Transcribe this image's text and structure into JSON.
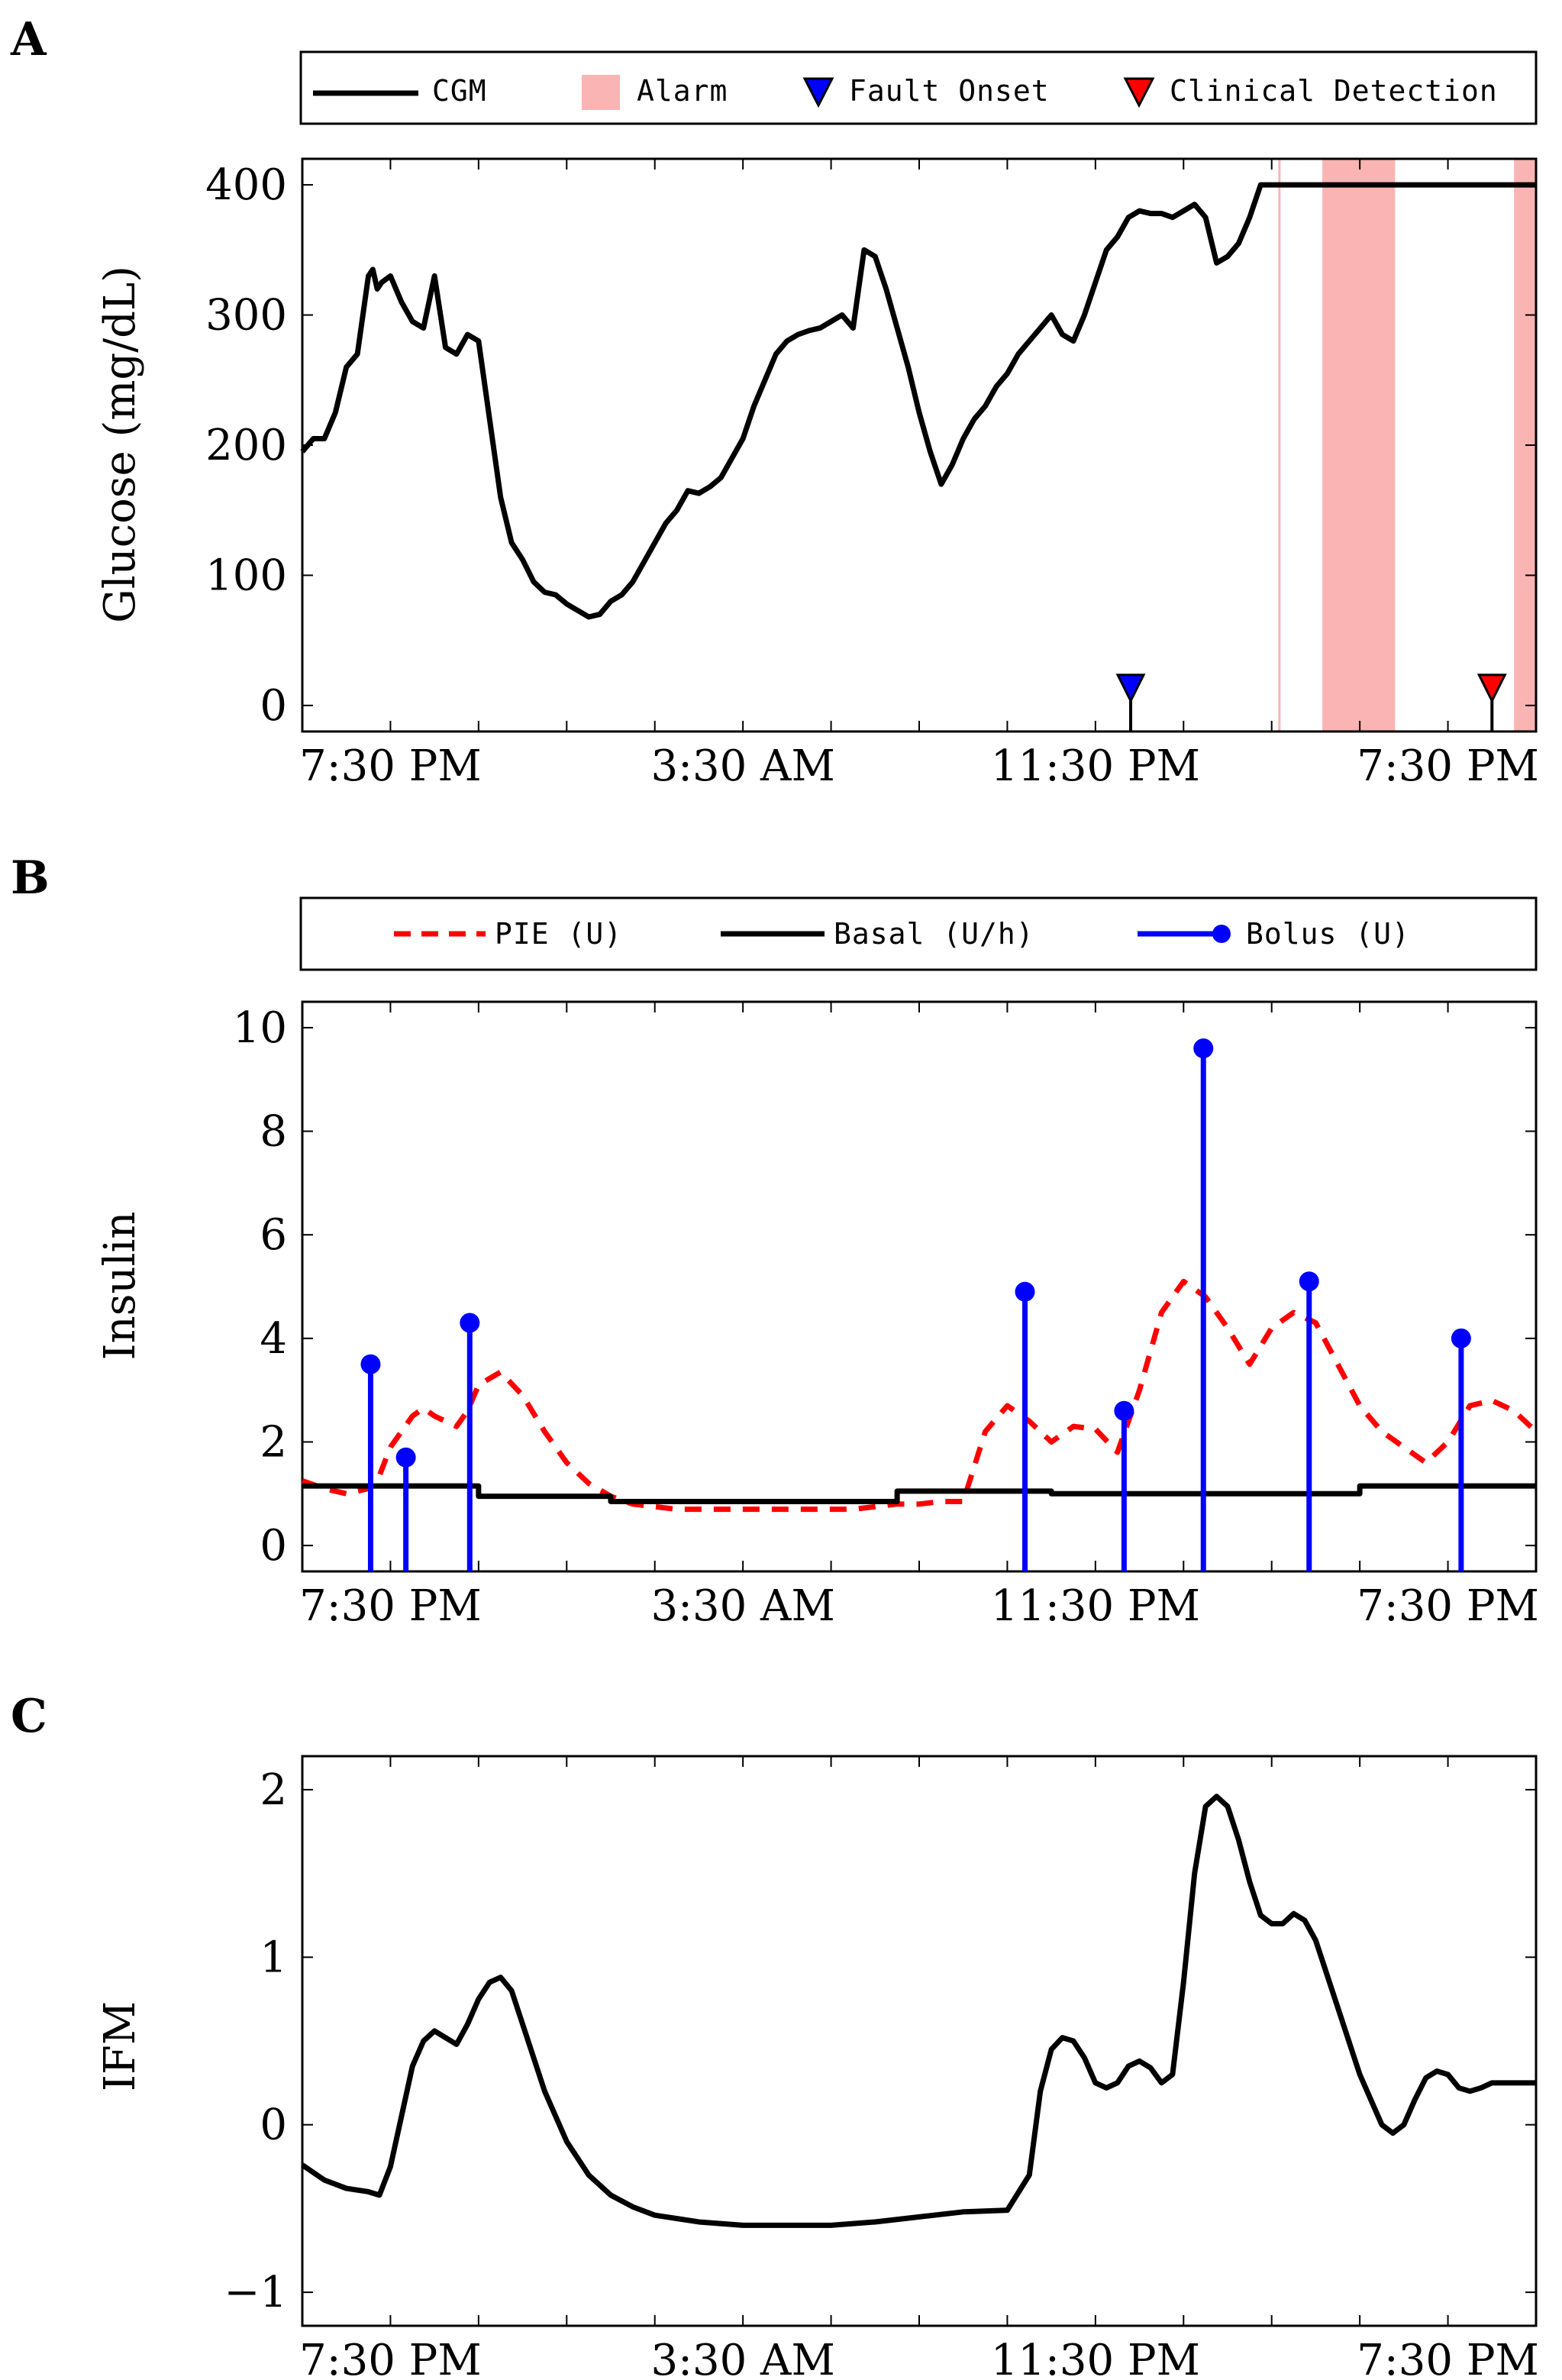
{
  "panels": {
    "A": {
      "letter": "A"
    },
    "B": {
      "letter": "B"
    },
    "C": {
      "letter": "C"
    }
  },
  "x_ticks": [
    "7:30 PM",
    "3:30 AM",
    "11:30 PM",
    "7:30 PM"
  ],
  "chart_data": [
    {
      "id": "A",
      "type": "line",
      "title": "",
      "xlabel": "",
      "ylabel": "Glucose (mg/dL)",
      "x_unit": "hours",
      "xlim": [
        0,
        56
      ],
      "ylim": [
        -20,
        420
      ],
      "y_ticks": [
        0,
        100,
        200,
        300,
        400
      ],
      "legend": {
        "placement": "top",
        "entries": [
          "CGM",
          "Alarm",
          "Fault Onset",
          "Clinical Detection"
        ]
      },
      "colors": {
        "cgm": "#000000",
        "alarm": "#fbb4b4",
        "fault": "#0000ff",
        "detection": "#ff0000"
      },
      "series": [
        {
          "name": "CGM",
          "x": [
            0,
            0.5,
            1,
            1.5,
            2,
            2.5,
            3,
            3.2,
            3.4,
            3.6,
            4,
            4.5,
            5,
            5.5,
            6,
            6.5,
            7,
            7.5,
            8,
            8.5,
            9,
            9.5,
            10,
            10.5,
            11,
            11.5,
            12,
            12.5,
            13,
            13.5,
            14,
            14.5,
            15,
            15.5,
            16,
            16.5,
            17,
            17.5,
            18,
            18.5,
            19,
            19.5,
            20,
            20.5,
            21,
            21.5,
            22,
            22.5,
            23,
            23.5,
            24,
            24.5,
            25,
            25.5,
            26,
            26.5,
            27,
            27.5,
            28,
            28.5,
            29,
            29.5,
            30,
            30.5,
            31,
            31.5,
            32,
            32.5,
            33,
            33.5,
            34,
            34.5,
            35,
            35.5,
            36,
            36.5,
            37,
            37.5,
            38,
            38.5,
            39,
            39.5,
            40,
            40.5,
            41,
            41.5,
            42,
            42.5,
            43,
            43.5,
            44,
            44.5,
            45,
            45.5,
            46,
            46.5,
            47,
            47.5,
            48,
            48.5,
            49,
            49.5,
            50,
            50.5,
            51,
            51.5,
            52,
            52.5,
            53,
            53.5,
            54,
            54.5,
            55,
            55.5,
            56
          ],
          "y": [
            195,
            205,
            205,
            225,
            260,
            270,
            330,
            335,
            320,
            325,
            330,
            310,
            295,
            290,
            330,
            275,
            270,
            285,
            280,
            220,
            160,
            125,
            112,
            95,
            87,
            85,
            78,
            73,
            68,
            70,
            80,
            85,
            95,
            110,
            125,
            140,
            150,
            165,
            163,
            168,
            175,
            190,
            205,
            230,
            250,
            270,
            280,
            285,
            288,
            290,
            295,
            300,
            290,
            350,
            345,
            320,
            290,
            260,
            225,
            195,
            170,
            185,
            205,
            220,
            230,
            245,
            255,
            270,
            280,
            290,
            300,
            285,
            280,
            300,
            325,
            350,
            360,
            375,
            380,
            378,
            378,
            375,
            380,
            385,
            375,
            340,
            345,
            355,
            375,
            400,
            400,
            400,
            400,
            400,
            400,
            400,
            400,
            400,
            400,
            400,
            400,
            400,
            400,
            400,
            400,
            400,
            400,
            400,
            400,
            400,
            400,
            400,
            400,
            400,
            400
          ]
        }
      ],
      "alarm_intervals": [
        [
          44.3,
          44.4
        ],
        [
          46.3,
          49.6
        ],
        [
          55.0,
          56.0
        ]
      ],
      "fault_onset": {
        "x": 37.6,
        "label": "Fault Onset"
      },
      "clinical_detection": {
        "x": 54.0,
        "label": "Clinical Detection"
      }
    },
    {
      "id": "B",
      "type": "line",
      "title": "",
      "xlabel": "",
      "ylabel": "Insulin",
      "x_unit": "hours",
      "xlim": [
        0,
        56
      ],
      "ylim": [
        -0.5,
        10.5
      ],
      "y_ticks": [
        0,
        2,
        4,
        6,
        8,
        10
      ],
      "legend": {
        "placement": "top",
        "entries": [
          "PIE (U)",
          "Basal (U/h)",
          "Bolus (U)"
        ]
      },
      "colors": {
        "pie": "#ff0000",
        "basal": "#000000",
        "bolus": "#0000ff"
      },
      "series": [
        {
          "name": "PIE (U)",
          "style": "dashed",
          "x": [
            0,
            1,
            2,
            3,
            3.5,
            4,
            5,
            5.5,
            6,
            7,
            7.5,
            8,
            9,
            10,
            11,
            12,
            13,
            14,
            15,
            16,
            17,
            18,
            19,
            20,
            21,
            22,
            23,
            24,
            25,
            26,
            27,
            28,
            29,
            30,
            31,
            32,
            33,
            34,
            35,
            36,
            37,
            38,
            39,
            40,
            41,
            42,
            43,
            44,
            45,
            46,
            47,
            48,
            49,
            50,
            51,
            52,
            53,
            54,
            55,
            56
          ],
          "y": [
            1.25,
            1.1,
            1.0,
            1.1,
            1.35,
            1.9,
            2.5,
            2.65,
            2.5,
            2.3,
            2.6,
            3.1,
            3.35,
            2.9,
            2.2,
            1.6,
            1.2,
            0.95,
            0.8,
            0.75,
            0.7,
            0.7,
            0.7,
            0.7,
            0.7,
            0.7,
            0.7,
            0.7,
            0.7,
            0.75,
            0.8,
            0.8,
            0.85,
            0.85,
            2.2,
            2.7,
            2.4,
            2.0,
            2.3,
            2.25,
            1.8,
            3.0,
            4.5,
            5.1,
            4.8,
            4.2,
            3.5,
            4.2,
            4.5,
            4.3,
            3.5,
            2.7,
            2.2,
            1.9,
            1.6,
            2.0,
            2.7,
            2.8,
            2.6,
            2.2
          ]
        },
        {
          "name": "Basal (U/h)",
          "style": "step",
          "x": [
            0,
            8,
            14,
            20,
            27,
            34,
            41,
            48,
            56
          ],
          "y": [
            1.15,
            0.95,
            0.85,
            0.85,
            1.05,
            1.0,
            1.0,
            1.15,
            1.15
          ]
        }
      ],
      "bolus": {
        "name": "Bolus (U)",
        "x": [
          3.1,
          4.7,
          7.6,
          32.8,
          37.3,
          40.9,
          45.7,
          52.6
        ],
        "y": [
          3.5,
          1.7,
          4.3,
          4.9,
          2.6,
          9.6,
          5.1,
          4.0
        ]
      }
    },
    {
      "id": "C",
      "type": "line",
      "title": "",
      "xlabel": "",
      "ylabel": "IFM",
      "x_unit": "hours",
      "xlim": [
        0,
        56
      ],
      "ylim": [
        -1.2,
        2.2
      ],
      "y_ticks": [
        -1,
        0,
        1,
        2
      ],
      "colors": {
        "ifm": "#000000"
      },
      "series": [
        {
          "name": "IFM",
          "x": [
            0,
            1,
            2,
            3,
            3.5,
            4,
            4.5,
            5,
            5.5,
            6,
            6.5,
            7,
            7.5,
            8,
            8.5,
            9,
            9.5,
            10,
            10.5,
            11,
            12,
            13,
            14,
            15,
            16,
            18,
            20,
            22,
            24,
            26,
            28,
            30,
            32,
            33,
            33.5,
            34,
            34.5,
            35,
            35.5,
            36,
            36.5,
            37,
            37.5,
            38,
            38.5,
            39,
            39.5,
            40,
            40.5,
            41,
            41.5,
            42,
            42.5,
            43,
            43.5,
            44,
            44.5,
            45,
            45.5,
            46,
            46.5,
            47,
            47.5,
            48,
            48.5,
            49,
            49.5,
            50,
            50.5,
            51,
            51.5,
            52,
            52.5,
            53,
            53.5,
            54,
            54.5,
            55,
            55.5,
            56
          ],
          "y": [
            -0.24,
            -0.33,
            -0.38,
            -0.4,
            -0.42,
            -0.25,
            0.05,
            0.35,
            0.5,
            0.56,
            0.52,
            0.48,
            0.6,
            0.75,
            0.85,
            0.88,
            0.8,
            0.6,
            0.4,
            0.2,
            -0.1,
            -0.3,
            -0.42,
            -0.49,
            -0.54,
            -0.58,
            -0.6,
            -0.6,
            -0.6,
            -0.58,
            -0.55,
            -0.52,
            -0.51,
            -0.3,
            0.2,
            0.45,
            0.52,
            0.5,
            0.4,
            0.25,
            0.22,
            0.25,
            0.35,
            0.38,
            0.34,
            0.25,
            0.3,
            0.85,
            1.5,
            1.9,
            1.96,
            1.9,
            1.7,
            1.45,
            1.25,
            1.2,
            1.2,
            1.26,
            1.22,
            1.1,
            0.9,
            0.7,
            0.5,
            0.3,
            0.15,
            -0.0,
            -0.05,
            0.0,
            0.15,
            0.28,
            0.32,
            0.3,
            0.22,
            0.2,
            0.22,
            0.25,
            0.25,
            0.25,
            0.25,
            0.25
          ]
        }
      ]
    }
  ]
}
